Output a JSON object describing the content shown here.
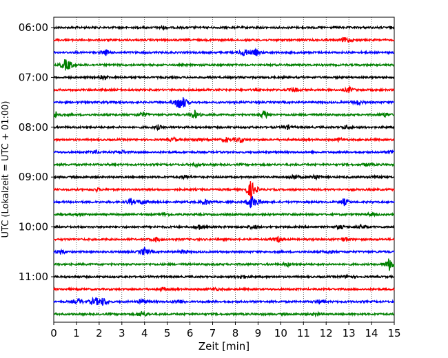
{
  "chart_data": {
    "type": "line",
    "title": "",
    "xlabel": "Zeit  [min]",
    "ylabel": "UTC (Lokalzeit = UTC + 01:00)",
    "xlim": [
      0,
      15
    ],
    "x_ticks": [
      "0",
      "1",
      "2",
      "3",
      "4",
      "5",
      "6",
      "7",
      "8",
      "9",
      "10",
      "11",
      "12",
      "13",
      "14",
      "15"
    ],
    "y_tick_labels": [
      "06:00",
      "07:00",
      "08:00",
      "09:00",
      "10:00",
      "11:00"
    ],
    "grid": "vertical dotted",
    "trace_start": "06:00",
    "trace_interval_min": 15,
    "trace_colors": [
      "#000000",
      "#ff0000",
      "#0000ff",
      "#008000"
    ],
    "traces": [
      {
        "start": "06:00",
        "events": [
          [
            4.8,
            0.25
          ]
        ]
      },
      {
        "start": "06:15",
        "events": [
          [
            12.8,
            0.35
          ],
          [
            13.0,
            0.3
          ]
        ]
      },
      {
        "start": "06:30",
        "events": [
          [
            2.3,
            0.5
          ],
          [
            8.4,
            0.8
          ],
          [
            8.9,
            0.6
          ]
        ]
      },
      {
        "start": "06:45",
        "events": [
          [
            0.5,
            0.9
          ],
          [
            0.7,
            0.6
          ]
        ]
      },
      {
        "start": "07:00",
        "events": [
          [
            2.2,
            0.4
          ]
        ]
      },
      {
        "start": "07:15",
        "events": [
          [
            10.6,
            0.45
          ],
          [
            13.0,
            0.55
          ]
        ]
      },
      {
        "start": "07:30",
        "events": [
          [
            5.5,
            1.2
          ],
          [
            5.7,
            0.8
          ],
          [
            13.4,
            0.5
          ]
        ]
      },
      {
        "start": "07:45",
        "events": [
          [
            0.1,
            0.6
          ],
          [
            3.9,
            0.6
          ],
          [
            6.2,
            0.9
          ],
          [
            9.3,
            0.9
          ],
          [
            14.6,
            0.4
          ]
        ]
      },
      {
        "start": "08:00",
        "events": [
          [
            4.6,
            0.4
          ],
          [
            10.3,
            0.4
          ],
          [
            12.9,
            0.4
          ]
        ]
      },
      {
        "start": "08:15",
        "events": [
          [
            5.3,
            0.4
          ],
          [
            6.3,
            0.35
          ],
          [
            7.6,
            0.4
          ],
          [
            8.2,
            0.55
          ],
          [
            12.6,
            0.35
          ]
        ]
      },
      {
        "start": "08:30",
        "events": [
          [
            1.8,
            0.4
          ],
          [
            3.0,
            0.35
          ],
          [
            14.9,
            0.4
          ]
        ]
      },
      {
        "start": "08:45",
        "events": [
          [
            6.3,
            0.3
          ],
          [
            13.8,
            0.25
          ]
        ]
      },
      {
        "start": "09:00",
        "events": [
          [
            10.6,
            0.6
          ],
          [
            11.5,
            0.6
          ],
          [
            14.2,
            0.4
          ],
          [
            5.8,
            0.35
          ]
        ]
      },
      {
        "start": "09:15",
        "events": [
          [
            1.9,
            0.3
          ],
          [
            8.7,
            2.0
          ]
        ]
      },
      {
        "start": "09:30",
        "events": [
          [
            3.4,
            0.6
          ],
          [
            3.9,
            0.55
          ],
          [
            6.7,
            0.55
          ],
          [
            8.7,
            1.3
          ],
          [
            9.0,
            0.45
          ],
          [
            12.8,
            0.6
          ]
        ]
      },
      {
        "start": "09:45",
        "events": [
          [
            1.1,
            0.35
          ],
          [
            4.9,
            0.35
          ],
          [
            14.0,
            0.3
          ]
        ]
      },
      {
        "start": "10:00",
        "events": [
          [
            6.4,
            0.55
          ],
          [
            8.8,
            0.4
          ],
          [
            12.6,
            0.4
          ],
          [
            13.6,
            0.35
          ]
        ]
      },
      {
        "start": "10:15",
        "events": [
          [
            4.5,
            0.45
          ],
          [
            9.9,
            0.55
          ],
          [
            12.8,
            0.4
          ]
        ]
      },
      {
        "start": "10:30",
        "events": [
          [
            0.3,
            0.45
          ],
          [
            4.0,
            0.85
          ],
          [
            5.7,
            0.4
          ],
          [
            12.1,
            0.35
          ]
        ]
      },
      {
        "start": "10:45",
        "events": [
          [
            10.3,
            0.35
          ],
          [
            14.8,
            1.4
          ]
        ]
      },
      {
        "start": "11:00",
        "events": [
          [
            8.3,
            0.35
          ],
          [
            13.0,
            0.35
          ]
        ]
      },
      {
        "start": "11:15",
        "events": [
          [
            4.8,
            0.3
          ],
          [
            7.1,
            0.3
          ]
        ]
      },
      {
        "start": "11:30",
        "events": [
          [
            1.1,
            0.55
          ],
          [
            1.8,
            0.9
          ],
          [
            2.2,
            0.8
          ],
          [
            3.9,
            0.55
          ],
          [
            5.5,
            0.5
          ],
          [
            11.7,
            0.35
          ]
        ]
      },
      {
        "start": "11:45",
        "events": [
          [
            3.9,
            0.7
          ],
          [
            11.6,
            0.35
          ]
        ]
      }
    ]
  }
}
